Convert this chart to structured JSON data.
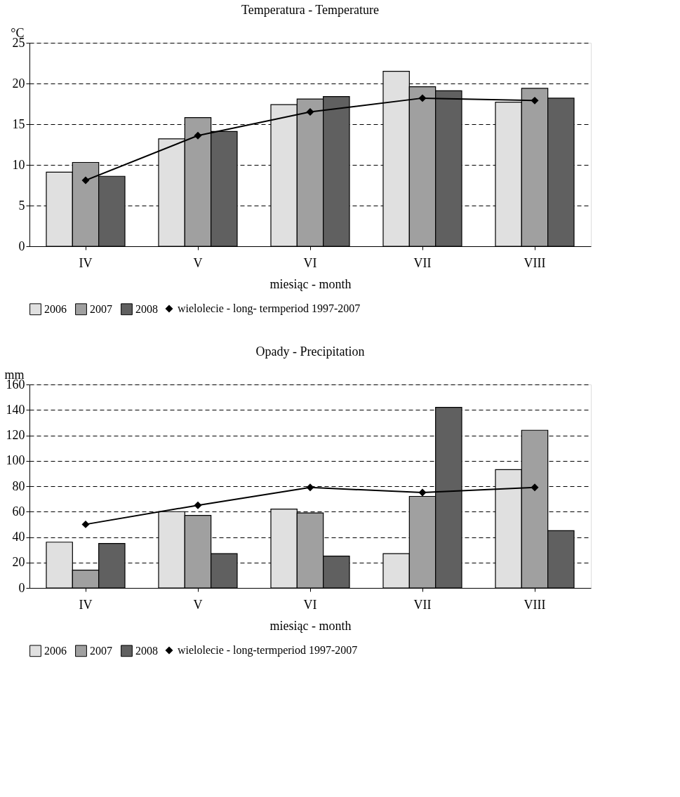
{
  "chart_data": [
    {
      "type": "bar",
      "title": "Temperatura - Temperature",
      "xlabel": "miesiąc - month",
      "ylabel": "°C",
      "categories": [
        "IV",
        "V",
        "VI",
        "VII",
        "VIII"
      ],
      "series": [
        {
          "name": "2006",
          "color": "#e0e0e0",
          "values": [
            9.1,
            13.2,
            17.4,
            21.5,
            17.7
          ]
        },
        {
          "name": "2007",
          "color": "#a0a0a0",
          "values": [
            10.3,
            15.8,
            18.1,
            19.6,
            19.4
          ]
        },
        {
          "name": "2008",
          "color": "#606060",
          "values": [
            8.6,
            14.1,
            18.4,
            19.1,
            18.2
          ]
        },
        {
          "name": "wielolecie - long- termperiod 1997-2007",
          "color": "#000000",
          "type": "line",
          "marker": "diamond",
          "values": [
            8.1,
            13.6,
            16.5,
            18.2,
            17.9
          ]
        }
      ],
      "ylim": [
        0,
        25
      ],
      "yticks": [
        0,
        5,
        10,
        15,
        20,
        25
      ],
      "grid": "y",
      "legend": "bottom"
    },
    {
      "type": "bar",
      "title": "Opady - Precipitation",
      "xlabel": "miesiąc - month",
      "ylabel": "mm",
      "categories": [
        "IV",
        "V",
        "VI",
        "VII",
        "VIII"
      ],
      "series": [
        {
          "name": "2006",
          "color": "#e0e0e0",
          "values": [
            36,
            60,
            62,
            27,
            93
          ]
        },
        {
          "name": "2007",
          "color": "#a0a0a0",
          "values": [
            14,
            57,
            59,
            72,
            124
          ]
        },
        {
          "name": "2008",
          "color": "#606060",
          "values": [
            35,
            27,
            25,
            142,
            45
          ]
        },
        {
          "name": "wielolecie - long-termperiod 1997-2007",
          "color": "#000000",
          "type": "line",
          "marker": "diamond",
          "values": [
            50,
            65,
            79,
            75,
            79
          ]
        }
      ],
      "ylim": [
        0,
        160
      ],
      "yticks": [
        0,
        20,
        40,
        60,
        80,
        100,
        120,
        140,
        160
      ],
      "grid": "y",
      "legend": "bottom"
    }
  ]
}
